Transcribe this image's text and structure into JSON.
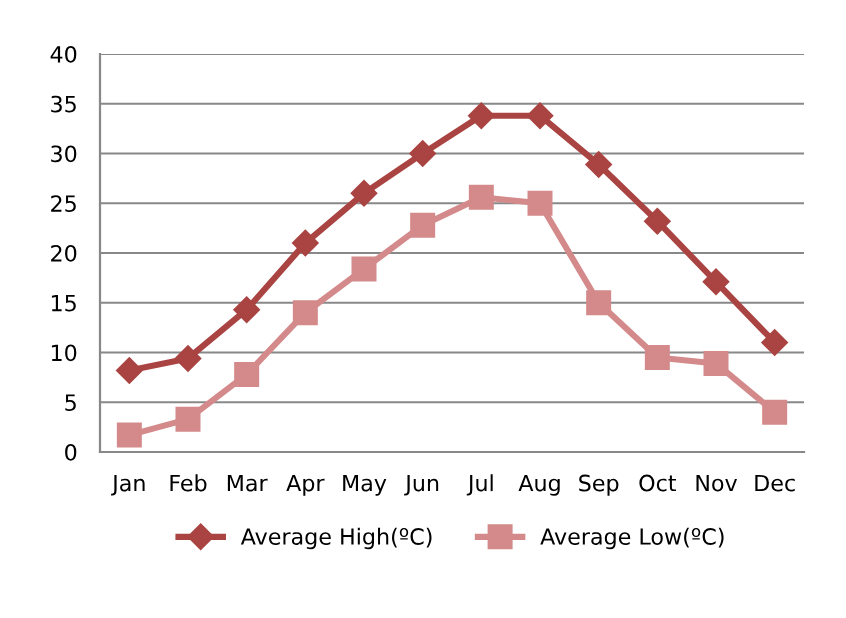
{
  "chart_data": {
    "type": "line",
    "categories": [
      "Jan",
      "Feb",
      "Mar",
      "Apr",
      "May",
      "Jun",
      "Jul",
      "Aug",
      "Sep",
      "Oct",
      "Nov",
      "Dec"
    ],
    "series": [
      {
        "name": "Average High(ºC)",
        "color": "#a94442",
        "marker": "diamond",
        "values": [
          8.2,
          9.4,
          14.3,
          21,
          26,
          30,
          33.8,
          33.8,
          28.9,
          23.2,
          17.1,
          11
        ]
      },
      {
        "name": "Average Low(ºC)",
        "color": "#d48a8a",
        "marker": "square",
        "values": [
          1.7,
          3.3,
          7.8,
          14,
          18.4,
          22.8,
          25.6,
          25,
          15,
          9.5,
          8.9,
          4
        ]
      }
    ],
    "ylim": [
      0,
      40
    ],
    "yticks": [
      0,
      5,
      10,
      15,
      20,
      25,
      30,
      35,
      40
    ],
    "grid": "y",
    "legend": "bottom",
    "line_style": "solid"
  }
}
